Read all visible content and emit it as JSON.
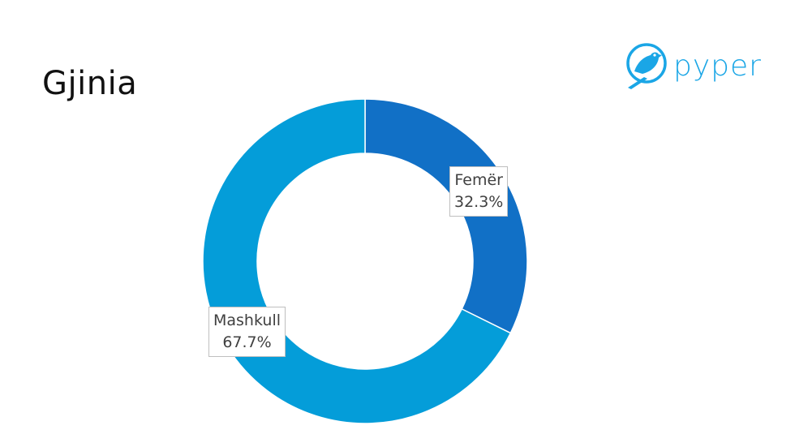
{
  "slide": {
    "title": "Gjinia"
  },
  "logo": {
    "text": "pyper",
    "icon": "bird-icon"
  },
  "colors": {
    "femer": "#1170c6",
    "mashkull": "#049dd9",
    "logo": "#1aa6e6"
  },
  "chart_data": {
    "type": "pie",
    "donut": true,
    "title": "",
    "categories": [
      "Femër",
      "Mashkull"
    ],
    "values": [
      32.3,
      67.7
    ],
    "labels": [
      {
        "name": "Femër",
        "value": "32.3%"
      },
      {
        "name": "Mashkull",
        "value": "67.7%"
      }
    ],
    "legend": "none"
  }
}
